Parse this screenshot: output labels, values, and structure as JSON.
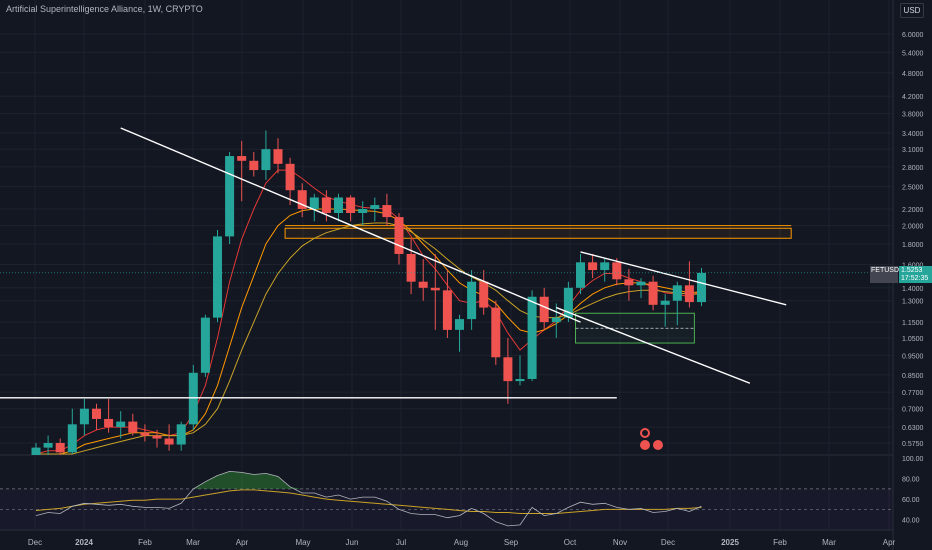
{
  "header": {
    "title": "Artificial Superintelligence Alliance, 1W, CRYPTO"
  },
  "currency": "USD",
  "symbol": "FETUSD",
  "last_price": "1.5253",
  "countdown": "17:52:35",
  "colors": {
    "up": "#26a69a",
    "down": "#ef5350",
    "background": "#131722",
    "grid": "#1e222d",
    "trendline": "#ffffff",
    "zone_orange": "#ff9800",
    "zone_green": "#4caf50",
    "ma_red": "#e53935",
    "ma_orange": "#ff9800",
    "ma_yellow": "#c9a227",
    "rsi_line": "#b2b5be",
    "rsi_fill": "#2e7d32"
  },
  "icons": [
    "flag-icon",
    "flag-icon"
  ],
  "chart_data": [
    {
      "type": "candlestick",
      "title": "Artificial Superintelligence Alliance, 1W, CRYPTO",
      "y_scale": "log",
      "y_ticks": [
        "6.0000",
        "5.4000",
        "4.8000",
        "4.2000",
        "3.8000",
        "3.4000",
        "3.1000",
        "2.8000",
        "2.5000",
        "2.2000",
        "2.0000",
        "1.8000",
        "1.6000",
        "1.4000",
        "1.3000",
        "1.1500",
        "1.0500",
        "0.9500",
        "0.8500",
        "0.7700",
        "0.7000",
        "0.6300",
        "0.5750",
        "0.5250"
      ],
      "x_ticks": [
        "Dec",
        "2024",
        "Feb",
        "Mar",
        "Apr",
        "May",
        "Jun",
        "Jul",
        "Aug",
        "Sep",
        "Oct",
        "Nov",
        "Dec",
        "2025",
        "Feb",
        "Mar",
        "Apr"
      ],
      "candles": [
        {
          "o": 0.52,
          "h": 0.575,
          "l": 0.5,
          "c": 0.56
        },
        {
          "o": 0.56,
          "h": 0.6,
          "l": 0.53,
          "c": 0.575
        },
        {
          "o": 0.575,
          "h": 0.59,
          "l": 0.53,
          "c": 0.545
        },
        {
          "o": 0.545,
          "h": 0.7,
          "l": 0.54,
          "c": 0.64
        },
        {
          "o": 0.64,
          "h": 0.74,
          "l": 0.6,
          "c": 0.7
        },
        {
          "o": 0.7,
          "h": 0.72,
          "l": 0.62,
          "c": 0.66
        },
        {
          "o": 0.66,
          "h": 0.74,
          "l": 0.61,
          "c": 0.63
        },
        {
          "o": 0.63,
          "h": 0.69,
          "l": 0.59,
          "c": 0.65
        },
        {
          "o": 0.65,
          "h": 0.68,
          "l": 0.6,
          "c": 0.61
        },
        {
          "o": 0.61,
          "h": 0.64,
          "l": 0.58,
          "c": 0.6
        },
        {
          "o": 0.6,
          "h": 0.62,
          "l": 0.56,
          "c": 0.59
        },
        {
          "o": 0.59,
          "h": 0.64,
          "l": 0.55,
          "c": 0.57
        },
        {
          "o": 0.57,
          "h": 0.65,
          "l": 0.55,
          "c": 0.64
        },
        {
          "o": 0.64,
          "h": 0.9,
          "l": 0.62,
          "c": 0.86
        },
        {
          "o": 0.86,
          "h": 1.2,
          "l": 0.84,
          "c": 1.18
        },
        {
          "o": 1.18,
          "h": 1.95,
          "l": 1.15,
          "c": 1.88
        },
        {
          "o": 1.88,
          "h": 3.05,
          "l": 1.8,
          "c": 2.98
        },
        {
          "o": 2.98,
          "h": 3.25,
          "l": 2.3,
          "c": 2.9
        },
        {
          "o": 2.9,
          "h": 3.05,
          "l": 2.65,
          "c": 2.75
        },
        {
          "o": 2.75,
          "h": 3.45,
          "l": 2.6,
          "c": 3.1
        },
        {
          "o": 3.1,
          "h": 3.3,
          "l": 2.7,
          "c": 2.85
        },
        {
          "o": 2.85,
          "h": 2.95,
          "l": 2.25,
          "c": 2.45
        },
        {
          "o": 2.45,
          "h": 2.55,
          "l": 2.1,
          "c": 2.2
        },
        {
          "o": 2.2,
          "h": 2.4,
          "l": 2.05,
          "c": 2.35
        },
        {
          "o": 2.35,
          "h": 2.45,
          "l": 2.05,
          "c": 2.15
        },
        {
          "o": 2.15,
          "h": 2.4,
          "l": 2.05,
          "c": 2.35
        },
        {
          "o": 2.35,
          "h": 2.38,
          "l": 2.05,
          "c": 2.15
        },
        {
          "o": 2.15,
          "h": 2.3,
          "l": 2.0,
          "c": 2.2
        },
        {
          "o": 2.2,
          "h": 2.35,
          "l": 2.05,
          "c": 2.25
        },
        {
          "o": 2.25,
          "h": 2.4,
          "l": 2.0,
          "c": 2.1
        },
        {
          "o": 2.1,
          "h": 2.15,
          "l": 1.6,
          "c": 1.7
        },
        {
          "o": 1.7,
          "h": 1.85,
          "l": 1.35,
          "c": 1.45
        },
        {
          "o": 1.45,
          "h": 1.65,
          "l": 1.3,
          "c": 1.4
        },
        {
          "o": 1.4,
          "h": 1.7,
          "l": 1.1,
          "c": 1.38
        },
        {
          "o": 1.38,
          "h": 1.55,
          "l": 1.05,
          "c": 1.1
        },
        {
          "o": 1.1,
          "h": 1.2,
          "l": 0.97,
          "c": 1.17
        },
        {
          "o": 1.17,
          "h": 1.55,
          "l": 1.1,
          "c": 1.45
        },
        {
          "o": 1.45,
          "h": 1.55,
          "l": 1.2,
          "c": 1.25
        },
        {
          "o": 1.25,
          "h": 1.3,
          "l": 0.9,
          "c": 0.94
        },
        {
          "o": 0.94,
          "h": 1.05,
          "l": 0.72,
          "c": 0.82
        },
        {
          "o": 0.82,
          "h": 0.95,
          "l": 0.8,
          "c": 0.83
        },
        {
          "o": 0.83,
          "h": 1.38,
          "l": 0.82,
          "c": 1.33
        },
        {
          "o": 1.33,
          "h": 1.4,
          "l": 1.1,
          "c": 1.15
        },
        {
          "o": 1.15,
          "h": 1.28,
          "l": 1.05,
          "c": 1.18
        },
        {
          "o": 1.18,
          "h": 1.45,
          "l": 1.15,
          "c": 1.4
        },
        {
          "o": 1.4,
          "h": 1.7,
          "l": 1.35,
          "c": 1.62
        },
        {
          "o": 1.62,
          "h": 1.7,
          "l": 1.48,
          "c": 1.55
        },
        {
          "o": 1.55,
          "h": 1.66,
          "l": 1.45,
          "c": 1.62
        },
        {
          "o": 1.62,
          "h": 1.66,
          "l": 1.42,
          "c": 1.47
        },
        {
          "o": 1.47,
          "h": 1.56,
          "l": 1.3,
          "c": 1.42
        },
        {
          "o": 1.42,
          "h": 1.48,
          "l": 1.32,
          "c": 1.45
        },
        {
          "o": 1.45,
          "h": 1.5,
          "l": 1.23,
          "c": 1.27
        },
        {
          "o": 1.27,
          "h": 1.35,
          "l": 1.12,
          "c": 1.3
        },
        {
          "o": 1.3,
          "h": 1.45,
          "l": 1.13,
          "c": 1.42
        },
        {
          "o": 1.42,
          "h": 1.63,
          "l": 1.25,
          "c": 1.29
        },
        {
          "o": 1.29,
          "h": 1.57,
          "l": 1.26,
          "c": 1.525
        }
      ],
      "moving_averages": [
        {
          "color": "#e53935",
          "values": [
            0.54,
            0.55,
            0.55,
            0.57,
            0.6,
            0.62,
            0.63,
            0.63,
            0.63,
            0.62,
            0.61,
            0.6,
            0.61,
            0.68,
            0.8,
            1.05,
            1.45,
            1.85,
            2.2,
            2.55,
            2.75,
            2.75,
            2.62,
            2.48,
            2.36,
            2.3,
            2.26,
            2.22,
            2.21,
            2.2,
            2.08,
            1.88,
            1.68,
            1.56,
            1.42,
            1.3,
            1.28,
            1.3,
            1.22,
            1.08,
            0.98,
            1.04,
            1.1,
            1.16,
            1.26,
            1.38,
            1.46,
            1.52,
            1.52,
            1.48,
            1.45,
            1.4,
            1.36,
            1.35,
            1.33,
            1.38
          ]
        },
        {
          "color": "#ff9800",
          "values": [
            0.54,
            0.54,
            0.54,
            0.55,
            0.57,
            0.58,
            0.59,
            0.6,
            0.61,
            0.61,
            0.61,
            0.6,
            0.6,
            0.62,
            0.68,
            0.8,
            1.0,
            1.25,
            1.5,
            1.8,
            2.0,
            2.12,
            2.18,
            2.2,
            2.2,
            2.2,
            2.19,
            2.18,
            2.17,
            2.14,
            2.06,
            1.94,
            1.8,
            1.68,
            1.55,
            1.44,
            1.38,
            1.34,
            1.28,
            1.18,
            1.1,
            1.08,
            1.1,
            1.14,
            1.2,
            1.28,
            1.35,
            1.4,
            1.43,
            1.44,
            1.44,
            1.42,
            1.4,
            1.38,
            1.36,
            1.37
          ]
        },
        {
          "color": "#c9a227",
          "values": [
            0.54,
            0.54,
            0.54,
            0.54,
            0.55,
            0.56,
            0.57,
            0.58,
            0.59,
            0.6,
            0.6,
            0.6,
            0.6,
            0.61,
            0.64,
            0.7,
            0.82,
            0.98,
            1.15,
            1.35,
            1.52,
            1.66,
            1.78,
            1.86,
            1.92,
            1.96,
            2.0,
            2.02,
            2.03,
            2.03,
            2.0,
            1.93,
            1.84,
            1.75,
            1.65,
            1.56,
            1.49,
            1.44,
            1.38,
            1.3,
            1.23,
            1.19,
            1.18,
            1.18,
            1.2,
            1.24,
            1.28,
            1.32,
            1.35,
            1.37,
            1.38,
            1.38,
            1.37,
            1.36,
            1.35,
            1.35
          ]
        }
      ],
      "trendlines": [
        {
          "from": [
            7,
            3.5
          ],
          "to": [
            45,
            1.15
          ]
        },
        {
          "from": [
            45,
            1.72
          ],
          "to": [
            62,
            1.27
          ]
        },
        {
          "from": [
            43,
            1.25
          ],
          "to": [
            59,
            0.81
          ]
        },
        {
          "from": [
            -15,
            0.745
          ],
          "to": [
            48,
            0.745
          ]
        }
      ],
      "zones": [
        {
          "x0": 21,
          "x1": 62,
          "y0": 1.86,
          "y1": 1.97,
          "color": "#ff9800"
        },
        {
          "x0": 45,
          "x1": 54,
          "y0": 1.02,
          "y1": 1.21,
          "color": "#4caf50"
        }
      ]
    },
    {
      "type": "line",
      "title": "RSI",
      "y_ticks": [
        "100.00",
        "80.00",
        "60.00",
        "40.00"
      ],
      "ylim": [
        30,
        100
      ],
      "series": [
        {
          "values": [
            49,
            50,
            51,
            53,
            55,
            56,
            57,
            58,
            59,
            59,
            60,
            60,
            60,
            62,
            64,
            66,
            68,
            69,
            69,
            68,
            67,
            66,
            64,
            62,
            60,
            59,
            58,
            57,
            56,
            55,
            54,
            53,
            52,
            51,
            50,
            49,
            48,
            48,
            47,
            47,
            46,
            46,
            46,
            46,
            47,
            48,
            49,
            50,
            50,
            50,
            50,
            50,
            50,
            51,
            51,
            52
          ]
        },
        {
          "values": [
            44,
            47,
            46,
            53,
            56,
            55,
            54,
            55,
            53,
            52,
            52,
            51,
            56,
            70,
            77,
            83,
            87,
            86,
            84,
            85,
            82,
            72,
            66,
            66,
            62,
            64,
            60,
            62,
            62,
            58,
            50,
            46,
            45,
            45,
            42,
            44,
            51,
            46,
            38,
            34,
            35,
            52,
            44,
            46,
            52,
            57,
            55,
            56,
            52,
            50,
            51,
            47,
            48,
            51,
            48,
            53
          ]
        }
      ]
    }
  ]
}
